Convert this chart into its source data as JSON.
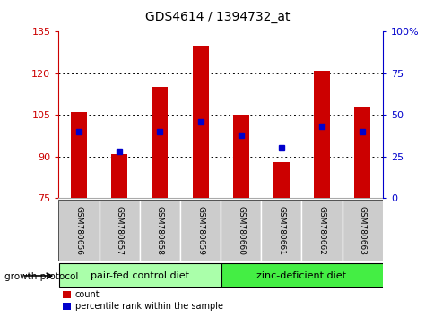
{
  "title": "GDS4614 / 1394732_at",
  "samples": [
    "GSM780656",
    "GSM780657",
    "GSM780658",
    "GSM780659",
    "GSM780660",
    "GSM780661",
    "GSM780662",
    "GSM780663"
  ],
  "counts": [
    106,
    91,
    115,
    130,
    105,
    88,
    121,
    108
  ],
  "percentile_ranks": [
    40,
    28,
    40,
    46,
    38,
    30,
    43,
    40
  ],
  "ylim_left": [
    75,
    135
  ],
  "yticks_left": [
    75,
    90,
    105,
    120,
    135
  ],
  "ylim_right": [
    0,
    100
  ],
  "yticks_right": [
    0,
    25,
    50,
    75,
    100
  ],
  "bar_color": "#cc0000",
  "dot_color": "#0000cc",
  "bar_width": 0.4,
  "group1_color": "#aaffaa",
  "group2_color": "#44ee44",
  "group_border_color": "#000000",
  "tick_bg_color": "#cccccc",
  "tick_border_color": "#888888",
  "groups": [
    {
      "label": "pair-fed control diet",
      "start": 0,
      "end": 3
    },
    {
      "label": "zinc-deficient diet",
      "start": 4,
      "end": 7
    }
  ],
  "group_label": "growth protocol",
  "legend_count_label": "count",
  "legend_percentile_label": "percentile rank within the sample",
  "tick_label_color_left": "#cc0000",
  "tick_label_color_right": "#0000cc",
  "title_fontsize": 10,
  "tick_fontsize": 8,
  "sample_fontsize": 6.5,
  "group_fontsize": 8,
  "legend_fontsize": 7
}
